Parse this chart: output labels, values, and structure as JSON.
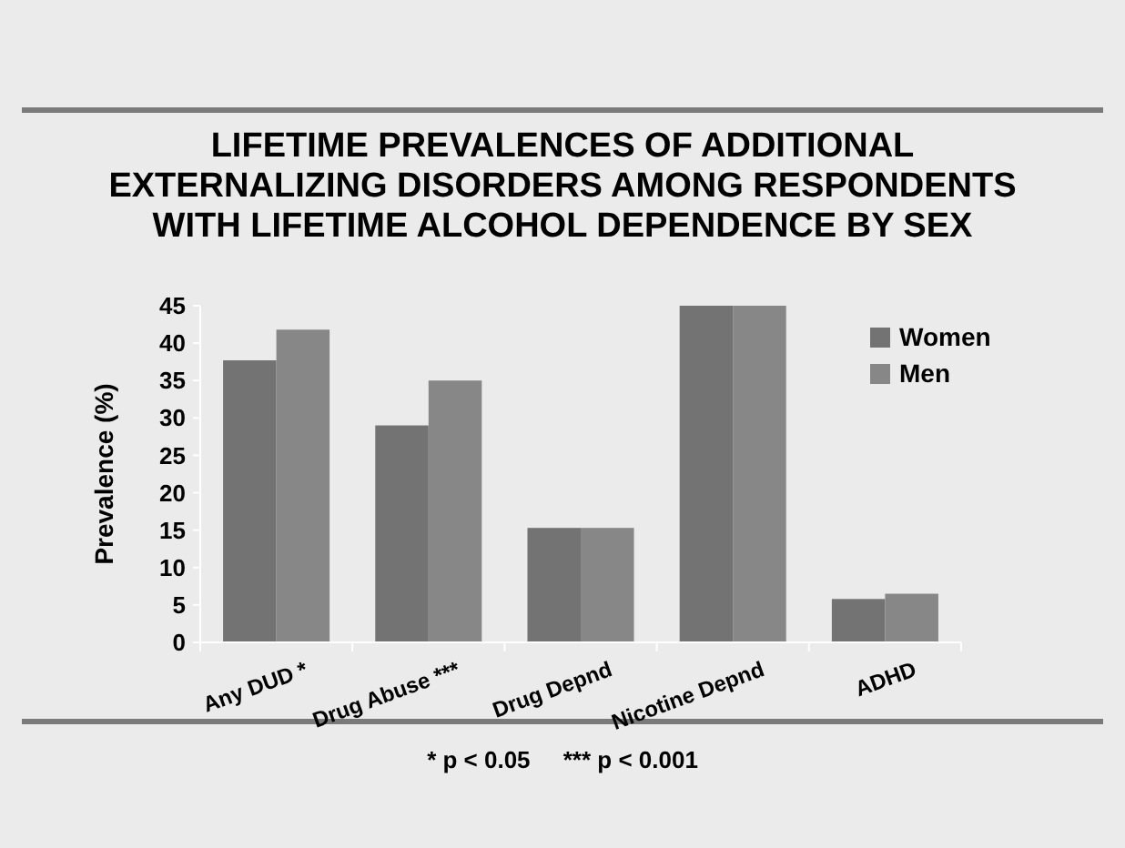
{
  "chart_data": {
    "type": "bar",
    "title": "LIFETIME PREVALENCES OF ADDITIONAL EXTERNALIZING DISORDERS AMONG RESPONDENTS WITH LIFETIME ALCOHOL DEPENDENCE BY SEX",
    "ylabel": "Prevalence (%)",
    "categories": [
      "Any DUD *",
      "Drug Abuse ***",
      "Drug Depnd",
      "Nicotine Depnd",
      "ADHD"
    ],
    "series": [
      {
        "name": "Women",
        "color": "#737373",
        "values": [
          37.7,
          29.0,
          15.3,
          45,
          5.8
        ]
      },
      {
        "name": "Men",
        "color": "#878787",
        "values": [
          41.8,
          35.0,
          15.3,
          45,
          6.5
        ]
      }
    ],
    "ylim": [
      0,
      45
    ],
    "yticks": [
      0,
      5,
      10,
      15,
      20,
      25,
      30,
      35,
      40,
      45
    ],
    "grid": false,
    "legend": "top right",
    "annotations": [
      "* p < 0.05     *** p < 0.001"
    ]
  }
}
